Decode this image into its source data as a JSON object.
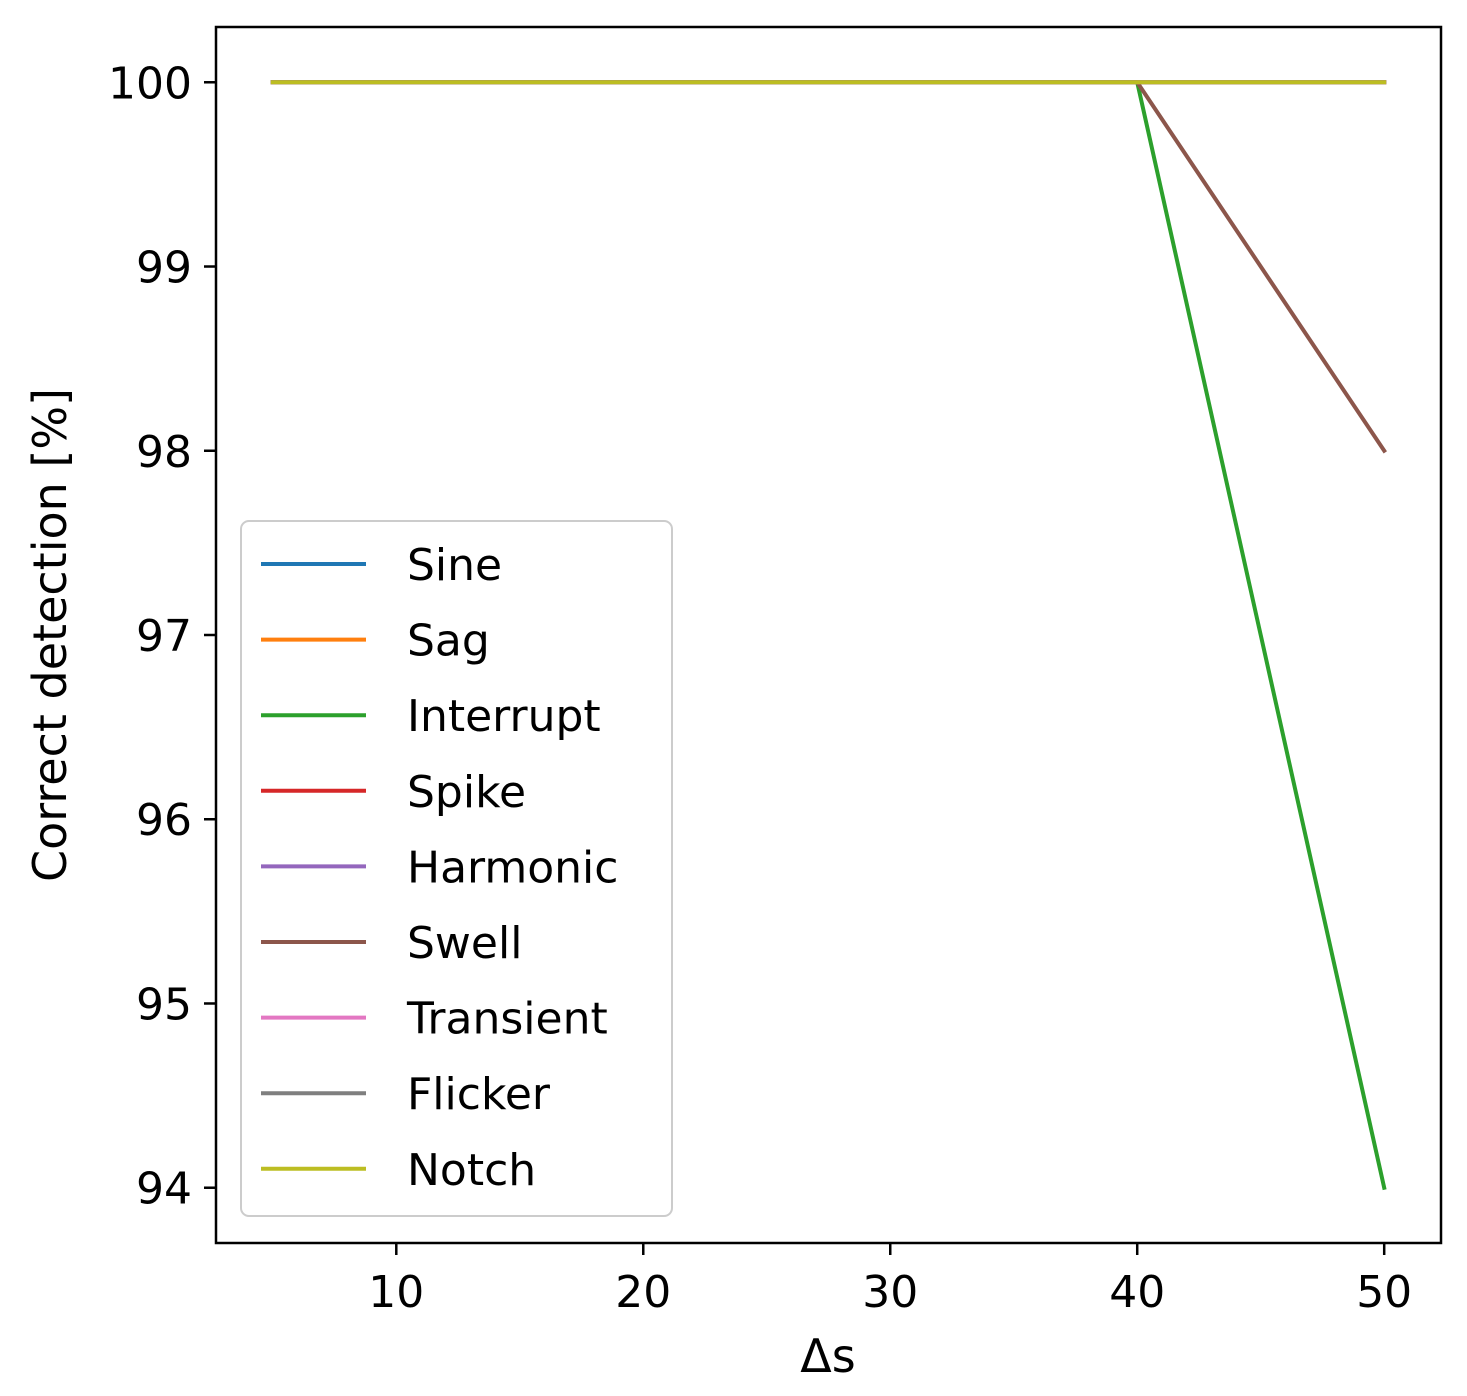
{
  "chart_data": {
    "type": "line",
    "title": "",
    "xlabel": "Δs",
    "ylabel": "Correct detection [%]",
    "xlim": [
      2.7,
      52.3
    ],
    "ylim": [
      93.7,
      100.3
    ],
    "xticks": [
      10,
      20,
      30,
      40,
      50
    ],
    "yticks": [
      94,
      95,
      96,
      97,
      98,
      99,
      100
    ],
    "grid": false,
    "legend_position": "lower-left",
    "x": [
      5,
      10,
      15,
      20,
      25,
      30,
      35,
      40,
      45,
      50
    ],
    "series": [
      {
        "name": "Sine",
        "color": "#1f77b4",
        "values": [
          100,
          100,
          100,
          100,
          100,
          100,
          100,
          100,
          100,
          100
        ]
      },
      {
        "name": "Sag",
        "color": "#ff7f0e",
        "values": [
          100,
          100,
          100,
          100,
          100,
          100,
          100,
          100,
          100,
          100
        ]
      },
      {
        "name": "Interrupt",
        "color": "#2ca02c",
        "values": [
          100,
          100,
          100,
          100,
          100,
          100,
          100,
          100,
          97,
          94
        ]
      },
      {
        "name": "Spike",
        "color": "#d62728",
        "values": [
          100,
          100,
          100,
          100,
          100,
          100,
          100,
          100,
          100,
          100
        ]
      },
      {
        "name": "Harmonic",
        "color": "#9467bd",
        "values": [
          100,
          100,
          100,
          100,
          100,
          100,
          100,
          100,
          100,
          100
        ]
      },
      {
        "name": "Swell",
        "color": "#8c564b",
        "values": [
          100,
          100,
          100,
          100,
          100,
          100,
          100,
          100,
          99,
          98
        ]
      },
      {
        "name": "Transient",
        "color": "#e377c2",
        "values": [
          100,
          100,
          100,
          100,
          100,
          100,
          100,
          100,
          100,
          100
        ]
      },
      {
        "name": "Flicker",
        "color": "#7f7f7f",
        "values": [
          100,
          100,
          100,
          100,
          100,
          100,
          100,
          100,
          100,
          100
        ]
      },
      {
        "name": "Notch",
        "color": "#bcbd22",
        "values": [
          100,
          100,
          100,
          100,
          100,
          100,
          100,
          100,
          100,
          100
        ]
      }
    ]
  }
}
